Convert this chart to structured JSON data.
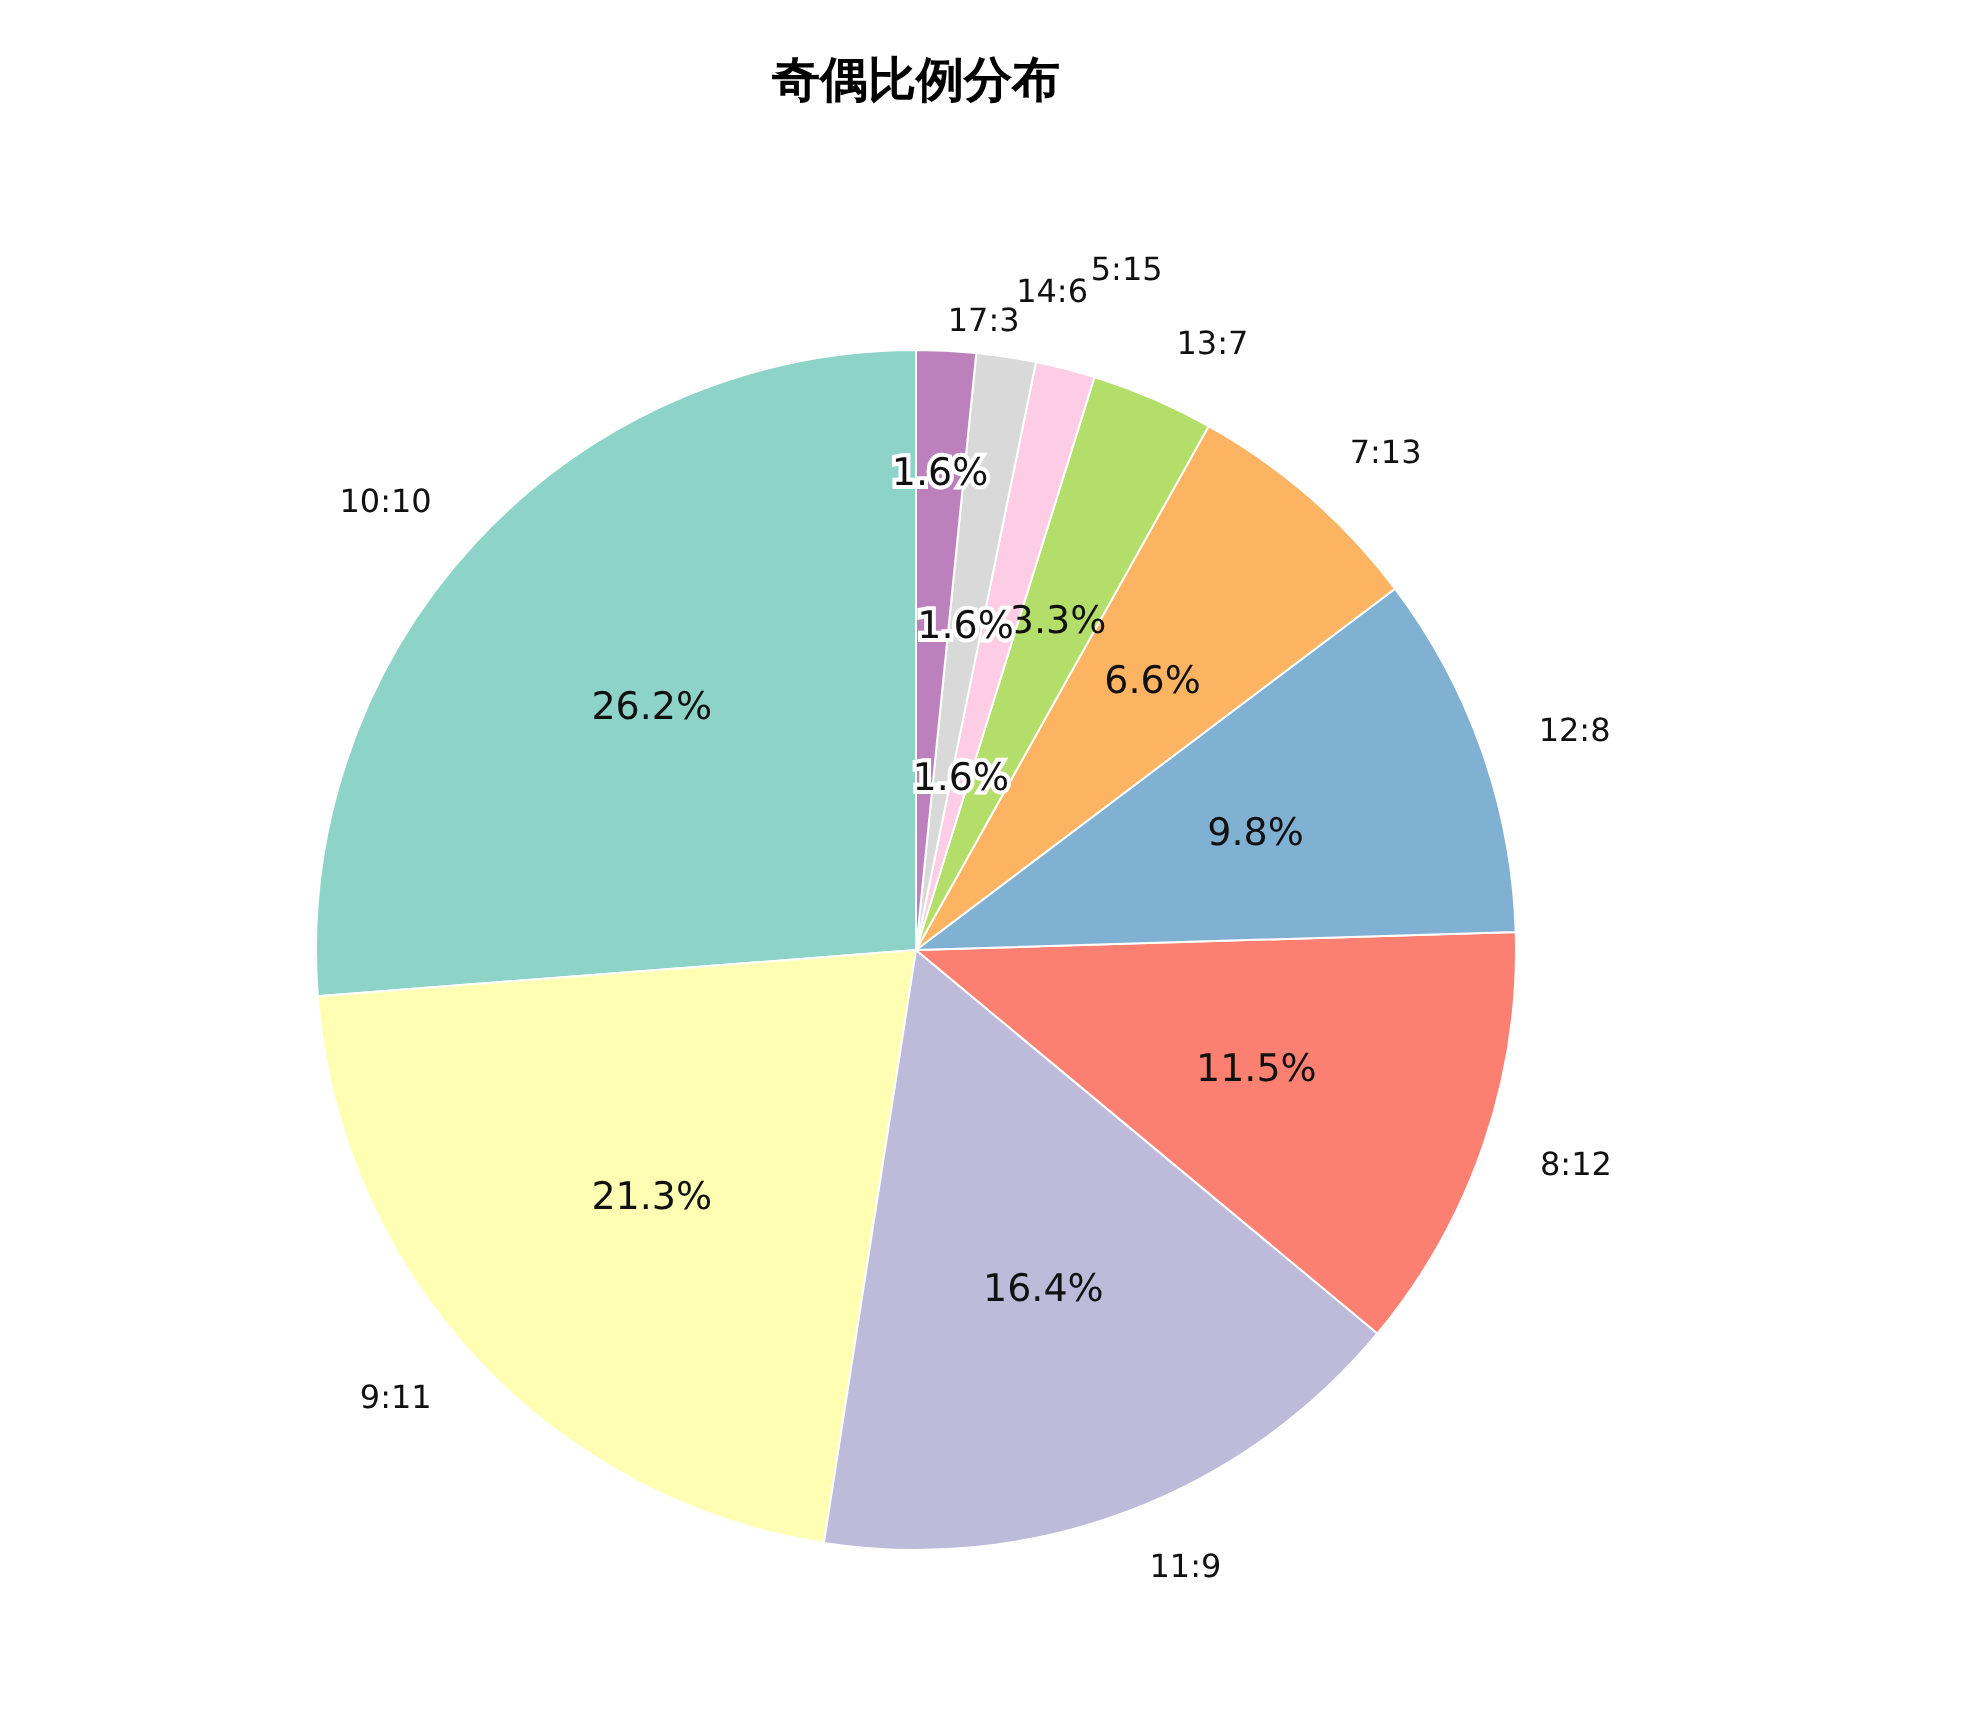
{
  "chart_data": {
    "type": "pie",
    "title": "奇偶比例分布",
    "categories": [
      "10:10",
      "9:11",
      "11:9",
      "8:12",
      "12:8",
      "7:13",
      "13:7",
      "5:15",
      "14:6",
      "17:3"
    ],
    "values": [
      26.2,
      21.3,
      16.4,
      11.5,
      9.8,
      6.6,
      3.3,
      1.6,
      1.6,
      1.6
    ],
    "colors": [
      "#8dd3c7",
      "#ffffb3",
      "#bebada",
      "#fb8072",
      "#80b1d3",
      "#fdb462",
      "#b3de69",
      "#fccde5",
      "#d9d9d9",
      "#bc80bd"
    ],
    "value_labels": [
      "26.2%",
      "21.3%",
      "16.4%",
      "11.5%",
      "9.8%",
      "6.6%",
      "3.3%",
      "1.6%",
      "1.6%",
      "1.6%"
    ]
  }
}
